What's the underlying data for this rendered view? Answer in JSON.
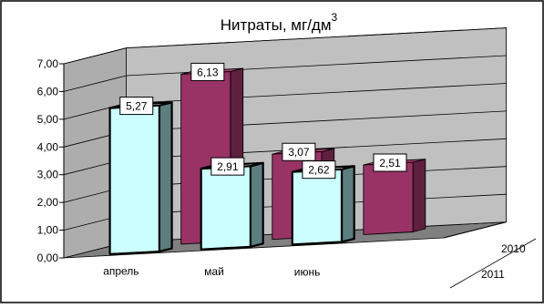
{
  "chart_data": {
    "type": "bar",
    "title": "Нитраты, мг/дм",
    "title_superscript": "3",
    "categories": [
      "апрель",
      "май",
      "июнь"
    ],
    "series": [
      {
        "name": "2010",
        "values": [
          6.13,
          3.07,
          2.51
        ],
        "labels": [
          "6,13",
          "3,07",
          "2,51"
        ],
        "color": "#993366"
      },
      {
        "name": "2011",
        "values": [
          5.27,
          2.91,
          2.62
        ],
        "labels": [
          "5,27",
          "2,91",
          "2,62"
        ],
        "color": "#CCFFFF"
      }
    ],
    "ylim": [
      0,
      7
    ],
    "y_ticks": [
      "0,00",
      "1,00",
      "2,00",
      "3,00",
      "4,00",
      "5,00",
      "6,00",
      "7,00"
    ],
    "grid": true,
    "three_d": true,
    "wall_color": "#C0C0C0",
    "floor_color": "#808080"
  }
}
